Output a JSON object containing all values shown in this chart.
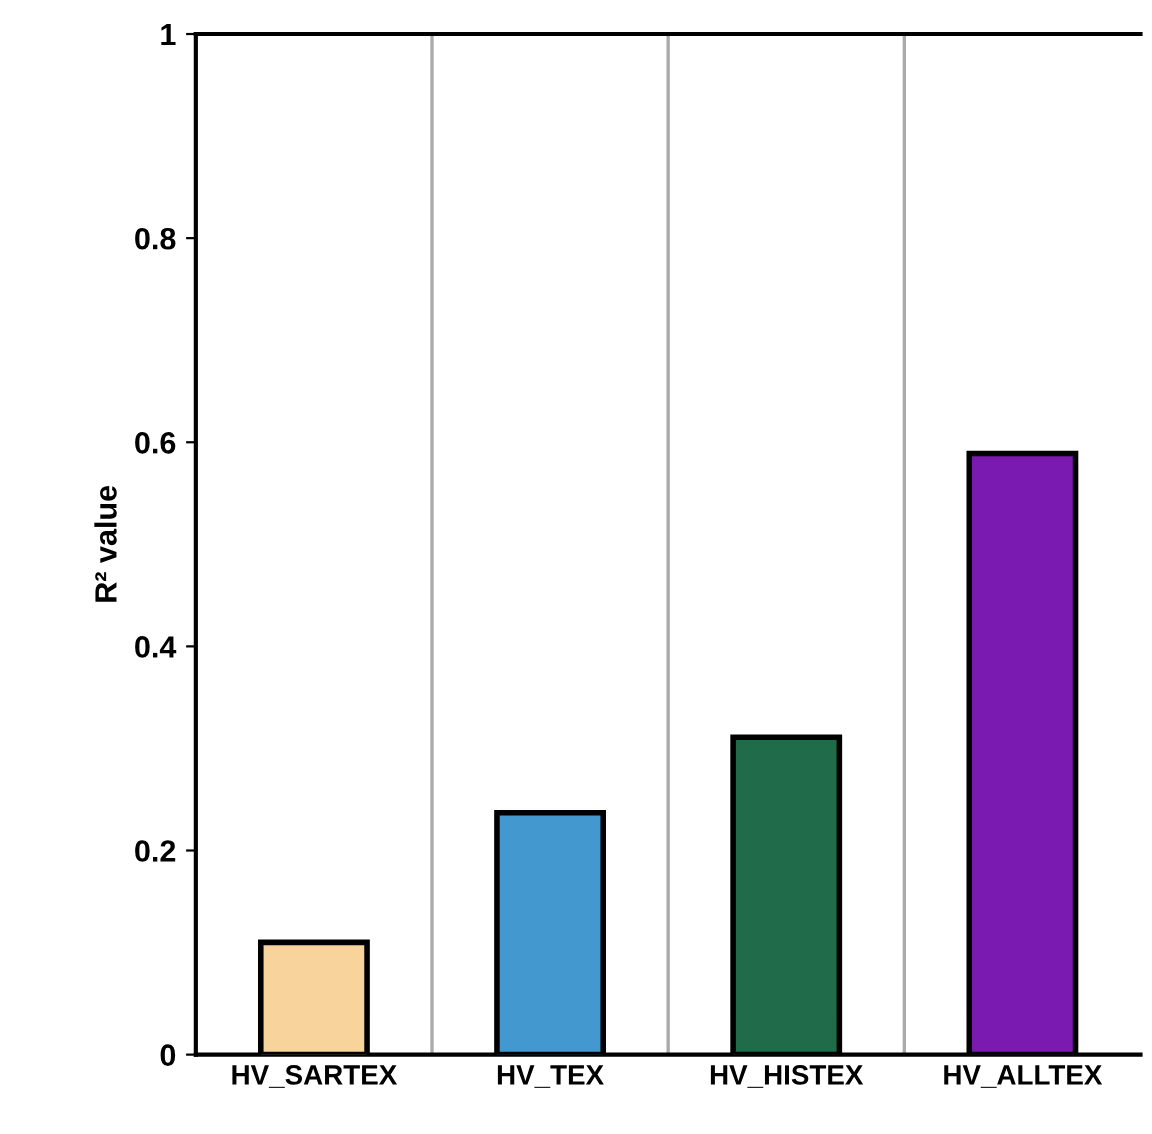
{
  "chart_data": {
    "type": "bar",
    "ylabel": "R² value",
    "categories": [
      "HV_SARTEX",
      "HV_TEX",
      "HV_HISTEX",
      "HV_ALLTEX"
    ],
    "values": [
      0.11,
      0.237,
      0.311,
      0.589
    ],
    "colors": [
      "#f8d39c",
      "#4399cf",
      "#1f6b4a",
      "#7a1ab0"
    ],
    "ylim": [
      0,
      1
    ],
    "yticks": [
      0,
      0.2,
      0.4,
      0.6,
      0.8,
      1
    ],
    "grid": "x"
  }
}
